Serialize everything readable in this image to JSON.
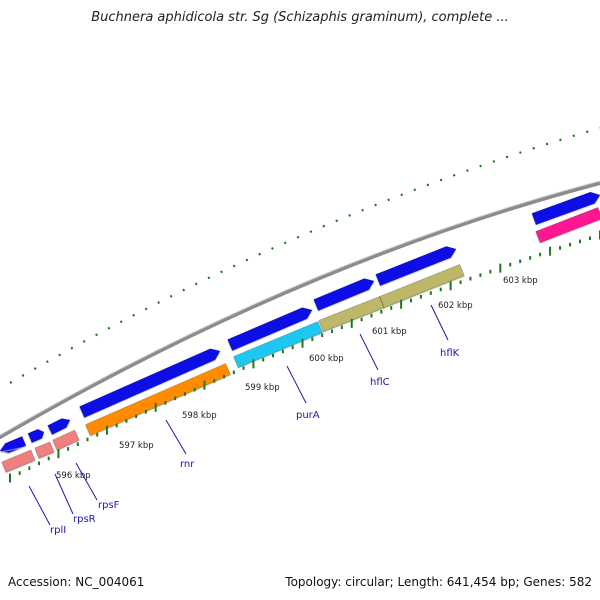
{
  "title": "Buchnera aphidicola str. Sg (Schizaphis graminum), complete ...",
  "footer": {
    "accession": "Accession: NC_004061",
    "summary": "Topology: circular; Length: 641,454 bp; Genes: 582"
  },
  "tick_labels": [
    "596 kbp",
    "597 kbp",
    "598 kbp",
    "599 kbp",
    "600 kbp",
    "601 kbp",
    "602 kbp",
    "603 kbp"
  ],
  "gene_labels": [
    "rplI",
    "rpsR",
    "rpsF",
    "rnr",
    "purA",
    "hflC",
    "hflK"
  ],
  "colors": {
    "backbone": "#8c8c8c",
    "cds": "#0a0ae6",
    "rplI": "#f08080",
    "rpsR": "#f08080",
    "rpsF": "#f08080",
    "rnr": "#ff8c00",
    "purA": "#1ec8f0",
    "hflC": "#bdb76b",
    "hflK": "#bdb76b",
    "unknown": "#ff1493",
    "tick": "#1a7a1a",
    "label_line": "#1a1aa8",
    "label_text": "#1a1aa8"
  }
}
